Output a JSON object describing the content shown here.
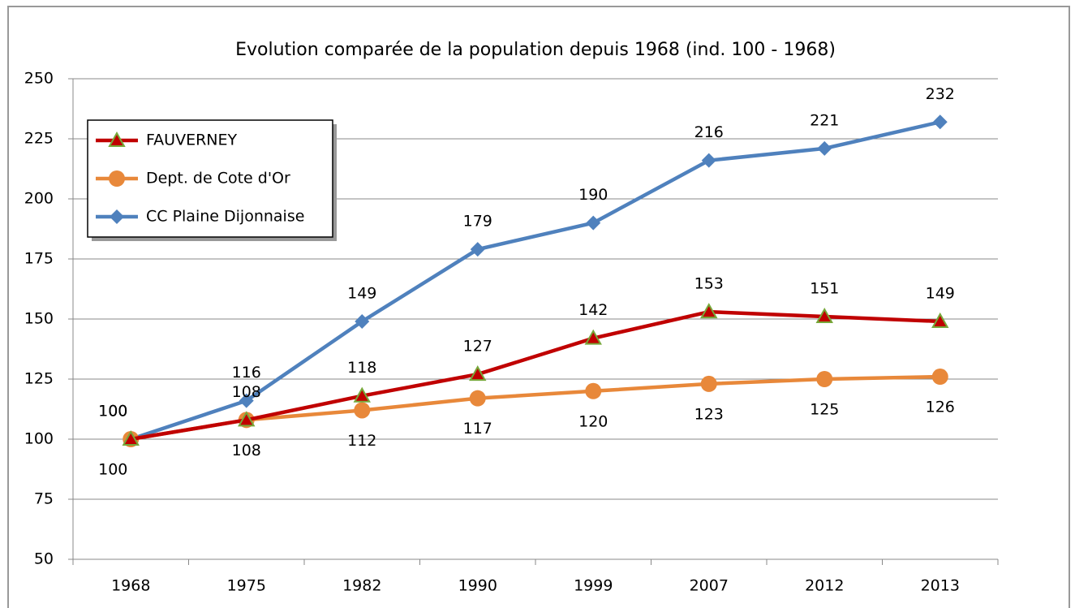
{
  "chart_data": {
    "type": "line",
    "title": "Evolution comparée de la population depuis 1968 (ind. 100 - 1968)",
    "categories": [
      "1968",
      "1975",
      "1982",
      "1990",
      "1999",
      "2007",
      "2012",
      "2013"
    ],
    "series": [
      {
        "name": "FAUVERNEY",
        "color": "#c00000",
        "marker": "triangle",
        "values": [
          100,
          108,
          118,
          127,
          142,
          153,
          151,
          149
        ]
      },
      {
        "name": "Dept. de Cote d'Or",
        "color": "#e8883a",
        "marker": "circle",
        "values": [
          100,
          108,
          112,
          117,
          120,
          123,
          125,
          126
        ]
      },
      {
        "name": "CC Plaine Dijonnaise",
        "color": "#4f81bd",
        "marker": "diamond",
        "values": [
          100,
          116,
          149,
          179,
          190,
          216,
          221,
          232
        ]
      }
    ],
    "ylim": [
      50,
      250
    ],
    "yticks": [
      50,
      75,
      100,
      125,
      150,
      175,
      200,
      225,
      250
    ],
    "grid": true,
    "legend": "top-left"
  }
}
